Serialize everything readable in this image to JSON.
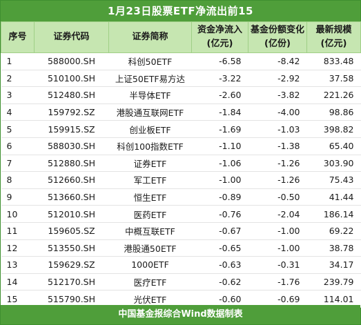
{
  "title": "1月23日股票ETF净流出前15",
  "headers": {
    "idx": "序号",
    "code": "证券代码",
    "name": "证券简称",
    "flow_line1": "资金净流入",
    "flow_line2": "(亿元)",
    "share_line1": "基金份额变化",
    "share_line2": "(亿份)",
    "scale_line1": "最新规模",
    "scale_line2": "(亿元)"
  },
  "rows": [
    {
      "idx": "1",
      "code": "588000.SH",
      "name": "科创50ETF",
      "flow": "-6.58",
      "share": "-8.42",
      "scale": "833.48"
    },
    {
      "idx": "2",
      "code": "510100.SH",
      "name": "上证50ETF易方达",
      "flow": "-3.22",
      "share": "-2.92",
      "scale": "37.58"
    },
    {
      "idx": "3",
      "code": "512480.SH",
      "name": "半导体ETF",
      "flow": "-2.60",
      "share": "-3.82",
      "scale": "221.26"
    },
    {
      "idx": "4",
      "code": "159792.SZ",
      "name": "港股通互联网ETF",
      "flow": "-1.84",
      "share": "-4.00",
      "scale": "98.86"
    },
    {
      "idx": "5",
      "code": "159915.SZ",
      "name": "创业板ETF",
      "flow": "-1.69",
      "share": "-1.03",
      "scale": "398.82"
    },
    {
      "idx": "6",
      "code": "588030.SH",
      "name": "科创100指数ETF",
      "flow": "-1.10",
      "share": "-1.38",
      "scale": "65.40"
    },
    {
      "idx": "7",
      "code": "512880.SH",
      "name": "证券ETF",
      "flow": "-1.06",
      "share": "-1.26",
      "scale": "303.90"
    },
    {
      "idx": "8",
      "code": "512660.SH",
      "name": "军工ETF",
      "flow": "-1.00",
      "share": "-1.26",
      "scale": "75.43"
    },
    {
      "idx": "9",
      "code": "513660.SH",
      "name": "恒生ETF",
      "flow": "-0.89",
      "share": "-0.50",
      "scale": "41.44"
    },
    {
      "idx": "10",
      "code": "512010.SH",
      "name": "医药ETF",
      "flow": "-0.76",
      "share": "-2.04",
      "scale": "186.14"
    },
    {
      "idx": "11",
      "code": "159605.SZ",
      "name": "中概互联ETF",
      "flow": "-0.67",
      "share": "-1.00",
      "scale": "69.22"
    },
    {
      "idx": "12",
      "code": "513550.SH",
      "name": "港股通50ETF",
      "flow": "-0.65",
      "share": "-1.00",
      "scale": "38.78"
    },
    {
      "idx": "13",
      "code": "159629.SZ",
      "name": "1000ETF",
      "flow": "-0.63",
      "share": "-0.31",
      "scale": "34.17"
    },
    {
      "idx": "14",
      "code": "512170.SH",
      "name": "医疗ETF",
      "flow": "-0.62",
      "share": "-1.76",
      "scale": "239.79"
    },
    {
      "idx": "15",
      "code": "515790.SH",
      "name": "光伏ETF",
      "flow": "-0.60",
      "share": "-0.69",
      "scale": "114.01"
    }
  ],
  "footer": "中国基金报综合Wind数据制表",
  "colors": {
    "title_bg": "#4f9e3a",
    "header_bg": "#c6e6b1",
    "footer_bg": "#4f9e3a"
  }
}
